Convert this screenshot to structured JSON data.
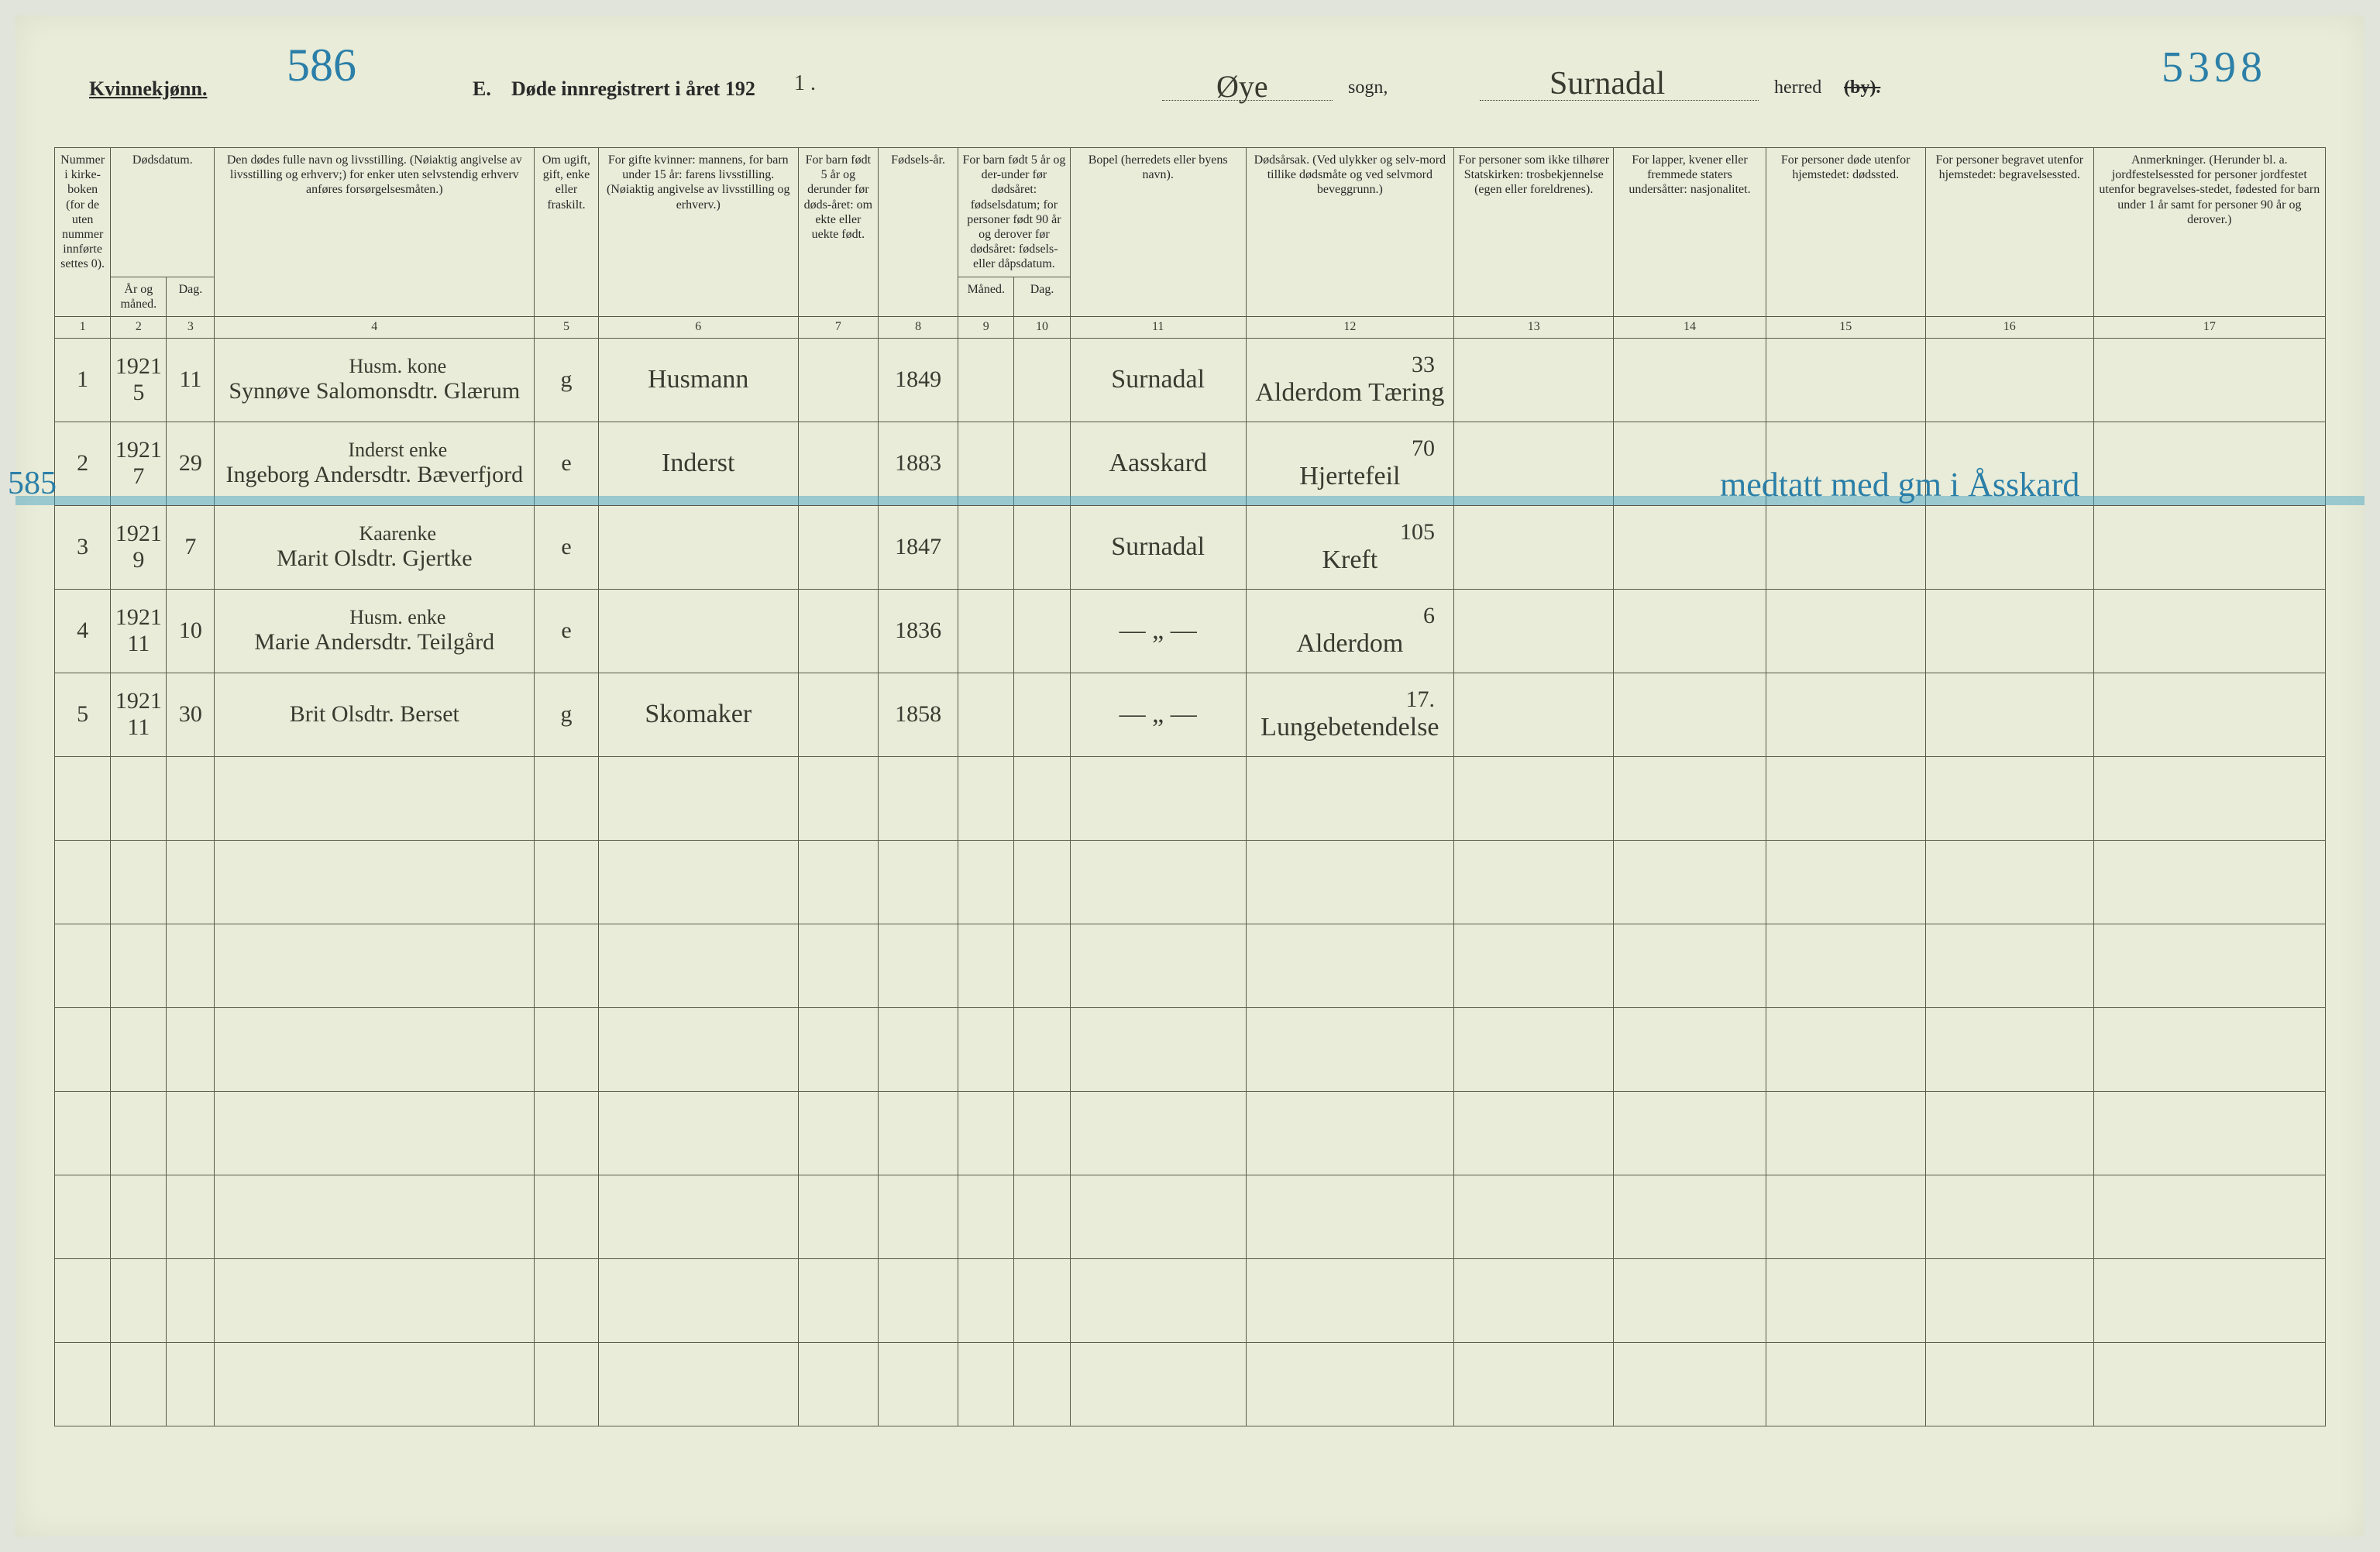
{
  "header": {
    "gender_label": "Kvinnekjønn.",
    "page_num_blue": "586",
    "title_prefix": "E.",
    "title_text": "Døde innregistrert i året 192",
    "title_year_suffix": "1 .",
    "sogn_value": "Øye",
    "sogn_label": "sogn,",
    "herred_value": "Surnadal",
    "herred_label": "herred",
    "by_strikethrough": "(by).",
    "right_num_blue": "5398"
  },
  "columns": {
    "h_border_color": "#5a5a4a",
    "col1": "Nummer i kirke-boken (for de uten nummer innførte settes 0).",
    "col2_3_top": "Dødsdatum.",
    "col2": "År og måned.",
    "col3": "Dag.",
    "col4": "Den dødes fulle navn og livsstilling. (Nøiaktig angivelse av livsstilling og erhverv;) for enker uten selvstendig erhverv anføres forsørgelsesmåten.)",
    "col5": "Om ugift, gift, enke eller fraskilt.",
    "col6": "For gifte kvinner: mannens, for barn under 15 år: farens livsstilling. (Nøiaktig angivelse av livsstilling og erhverv.)",
    "col7": "For barn født 5 år og derunder før døds-året: om ekte eller uekte født.",
    "col8": "Fødsels-år.",
    "col9_10_top": "For barn født 5 år og der-under før dødsåret: fødselsdatum; for personer født 90 år og derover før dødsåret: fødsels- eller dåpsdatum.",
    "col9": "Måned.",
    "col10": "Dag.",
    "col11": "Bopel (herredets eller byens navn).",
    "col12": "Dødsårsak. (Ved ulykker og selv-mord tillike dødsmåte og ved selvmord beveggrunn.)",
    "col13": "For personer som ikke tilhører Statskirken: trosbekjennelse (egen eller foreldrenes).",
    "col14": "For lapper, kvener eller fremmede staters undersåtter: nasjonalitet.",
    "col15": "For personer døde utenfor hjemstedet: dødssted.",
    "col16": "For personer begravet utenfor hjemstedet: begravelsessted.",
    "col17": "Anmerkninger. (Herunder bl. a. jordfestelsessted for personer jordfestet utenfor begravelses-stedet, fødested for barn under 1 år samt for personer 90 år og derover.)",
    "numbers": [
      "1",
      "2",
      "3",
      "4",
      "5",
      "6",
      "7",
      "8",
      "9",
      "10",
      "11",
      "12",
      "13",
      "14",
      "15",
      "16",
      "17"
    ]
  },
  "rows": [
    {
      "num": "1",
      "year_month": "1921 / 5",
      "day": "11",
      "occupation": "Husm. kone",
      "name": "Synnøve Salomonsdtr. Glærum",
      "status": "g",
      "spouse_occ": "Husmann",
      "birth_year": "1849",
      "residence": "Surnadal",
      "cause": "Alderdom Tæring",
      "code": "33"
    },
    {
      "num": "2",
      "side_blue": "585",
      "year_month": "1921 / 7",
      "day": "29",
      "occupation": "Inderst enke",
      "name": "Ingeborg Andersdtr. Bæverfjord",
      "status": "e",
      "spouse_occ": "Inderst",
      "birth_year": "1883",
      "residence": "Aasskard",
      "cause": "Hjertefeil",
      "code": "70",
      "annotation_blue": "medtatt med gm i Åsskard"
    },
    {
      "num": "3",
      "year_month": "1921 / 9",
      "day": "7",
      "occupation": "Kaarenke",
      "name": "Marit Olsdtr. Gjertke",
      "status": "e",
      "spouse_occ": "",
      "birth_year": "1847",
      "residence": "Surnadal",
      "cause": "Kreft",
      "code": "105"
    },
    {
      "num": "4",
      "year_month": "1921 / 11",
      "day": "10",
      "occupation": "Husm. enke",
      "name": "Marie Andersdtr. Teilgård",
      "status": "e",
      "spouse_occ": "",
      "birth_year": "1836",
      "residence": "— „ —",
      "cause": "Alderdom",
      "code": "6"
    },
    {
      "num": "5",
      "year_month": "1921 / 11",
      "day": "30",
      "occupation": "",
      "name": "Brit Olsdtr. Berset",
      "status": "g",
      "spouse_occ": "Skomaker",
      "birth_year": "1858",
      "residence": "— „ —",
      "cause": "Lungebetendelse",
      "code": "17."
    }
  ],
  "empty_row_count": 8,
  "style": {
    "page_bg": "#e8ecd8",
    "body_bg": "#e0e4da",
    "ink_color": "#3a3a30",
    "blue_pencil": "#2b7fa8",
    "highlight_band": "rgba(60,160,200,0.45)"
  }
}
